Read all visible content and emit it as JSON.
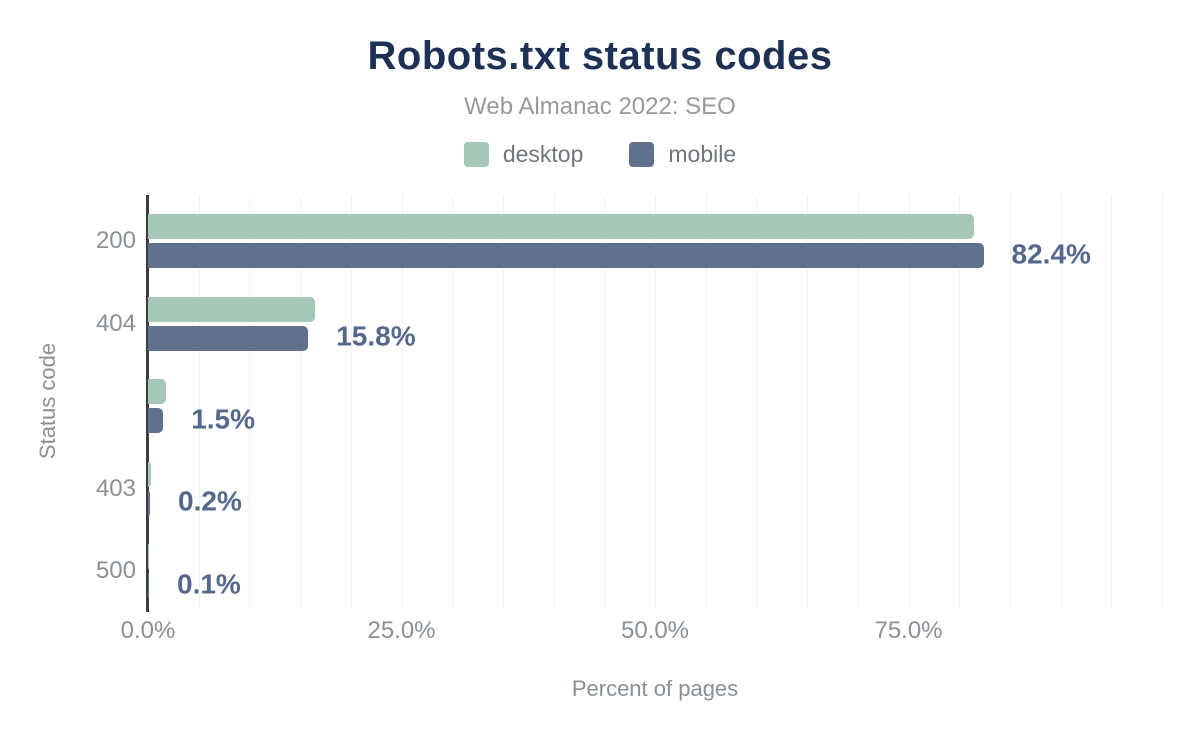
{
  "title": "Robots.txt status codes",
  "subtitle": "Web Almanac 2022: SEO",
  "legend": {
    "items": [
      {
        "label": "desktop",
        "color": "#a4c8b5"
      },
      {
        "label": "mobile",
        "color": "#60718d"
      }
    ]
  },
  "chart_data": {
    "type": "bar",
    "orientation": "horizontal",
    "title": "Robots.txt status codes",
    "subtitle": "Web Almanac 2022: SEO",
    "categories": [
      "200",
      "404",
      "",
      "403",
      "500"
    ],
    "series": [
      {
        "name": "desktop",
        "color": "#a4c8b5",
        "values": [
          81.5,
          16.5,
          1.8,
          0.3,
          0.1
        ]
      },
      {
        "name": "mobile",
        "color": "#60718d",
        "values": [
          82.4,
          15.8,
          1.5,
          0.2,
          0.1
        ]
      }
    ],
    "data_labels": [
      "82.4%",
      "15.8%",
      "1.5%",
      "0.2%",
      "0.1%"
    ],
    "data_labels_series": "mobile",
    "xlabel": "Percent of pages",
    "ylabel": "Status code",
    "x_ticks": [
      "0.0%",
      "25.0%",
      "50.0%",
      "75.0%"
    ],
    "x_tick_values": [
      0,
      25,
      50,
      75
    ],
    "xlim": [
      0,
      100
    ],
    "grid": true,
    "grid_step_percent": 5,
    "legend_position": "top",
    "colors": {
      "title": "#1d3154",
      "subtitle": "#97999c",
      "axis_text": "#8a9097",
      "legend_text": "#6f757e",
      "value_label": "#54688c",
      "gridline": "#f1f1f4",
      "axis_line": "#3c3d3f",
      "background": "#ffffff"
    }
  }
}
